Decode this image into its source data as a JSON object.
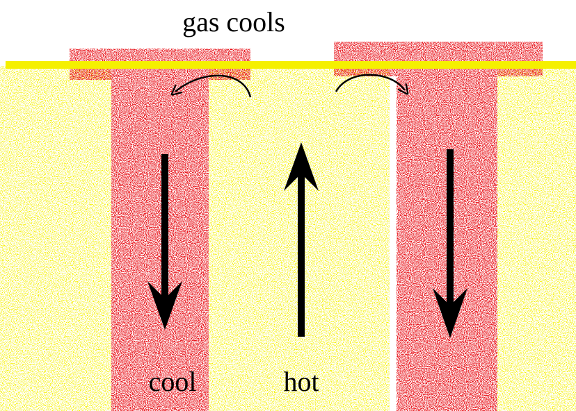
{
  "labels": {
    "top": "gas cools",
    "left": "cool",
    "center": "hot"
  }
}
